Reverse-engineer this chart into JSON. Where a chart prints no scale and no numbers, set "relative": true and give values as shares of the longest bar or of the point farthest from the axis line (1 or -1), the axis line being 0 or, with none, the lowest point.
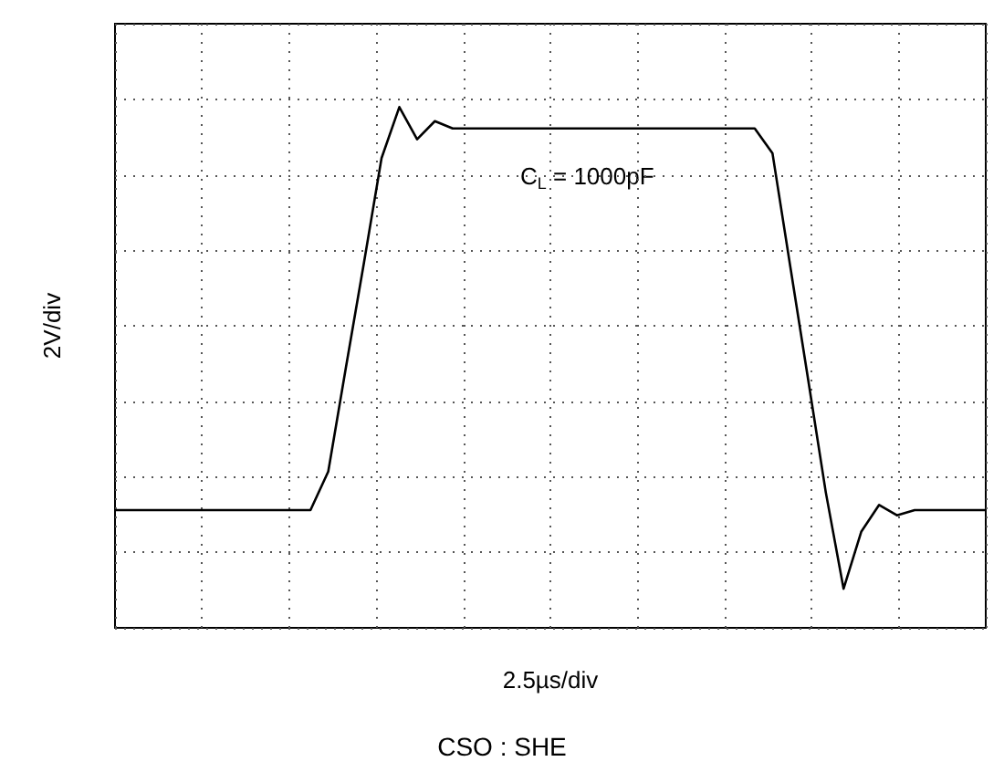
{
  "chart_data": {
    "type": "line",
    "relative": true,
    "xlabel": "2.5µs/div",
    "ylabel": "2V/div",
    "grid": true,
    "marker": "none",
    "line_style": "solid",
    "annotations": [
      "C$_{L}$ = 1000pF",
      "CSO : SHE"
    ],
    "categories": [
      null,
      null,
      null,
      null,
      null,
      null,
      null,
      null,
      null,
      null,
      null,
      null,
      null,
      null,
      null,
      null,
      null,
      null,
      null,
      null,
      null,
      null,
      null,
      null,
      null,
      null,
      null,
      null,
      null,
      null,
      null,
      null,
      null,
      null,
      null,
      null,
      null,
      null,
      null,
      null,
      null,
      null,
      null,
      null,
      null,
      null,
      null,
      null,
      null,
      null
    ],
    "series": [
      {
        "color": "#000000",
        "values": [
          0.226,
          0.226,
          0.226,
          0.226,
          0.226,
          0.226,
          0.226,
          0.226,
          0.226,
          0.226,
          0.226,
          0.226,
          0.3,
          0.501,
          0.699,
          0.902,
          1,
          0.938,
          0.973,
          0.959,
          0.959,
          0.959,
          0.959,
          0.959,
          0.959,
          0.959,
          0.959,
          0.959,
          0.959,
          0.959,
          0.959,
          0.959,
          0.959,
          0.959,
          0.959,
          0.959,
          0.959,
          0.911,
          0.694,
          0.478,
          0.26,
          0.075,
          0.185,
          0.236,
          0.216,
          0.226,
          0.226,
          0.226,
          0.226,
          0.226
        ]
      }
    ]
  }
}
